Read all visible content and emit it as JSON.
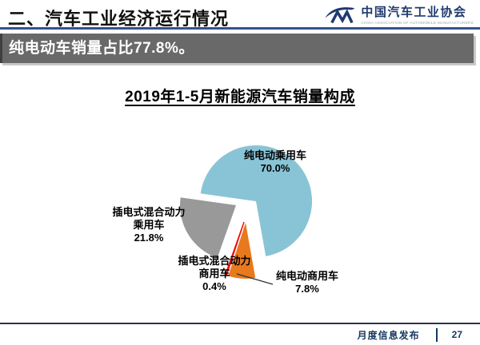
{
  "header": {
    "title": "二、汽车工业经济运行情况",
    "logo": {
      "org_cn": "中国汽车工业协会",
      "org_en": "CHINA ASSOCIATION OF AUTOMOBILE MANUFACTURERS"
    }
  },
  "banner": {
    "text": "纯电动车销量占比77.8%。",
    "bg_color": "#696969"
  },
  "chart_data": {
    "type": "pie",
    "title": "2019年1-5月新能源汽车销量构成",
    "unit": "%",
    "start_angle_deg": 278,
    "clockwise": true,
    "legend": "none",
    "slices": [
      {
        "label": "纯电动乘用车",
        "value": 70.0,
        "display": "70.0%",
        "color": "#89C4D6"
      },
      {
        "label": "纯电动商用车",
        "value": 7.8,
        "display": "7.8%",
        "color": "#E8791D"
      },
      {
        "label": "插电式混合动力商用车",
        "value": 0.4,
        "display": "0.4%",
        "color": "#EE1111"
      },
      {
        "label": "插电式混合动力乘用车",
        "value": 21.8,
        "display": "21.8%",
        "color": "#999999"
      }
    ]
  },
  "footer": {
    "text": "月度信息发布",
    "page": "27"
  },
  "colors": {
    "header_rule": "#33518E",
    "banner_bg": "#696969",
    "footer_text": "#17375E"
  }
}
